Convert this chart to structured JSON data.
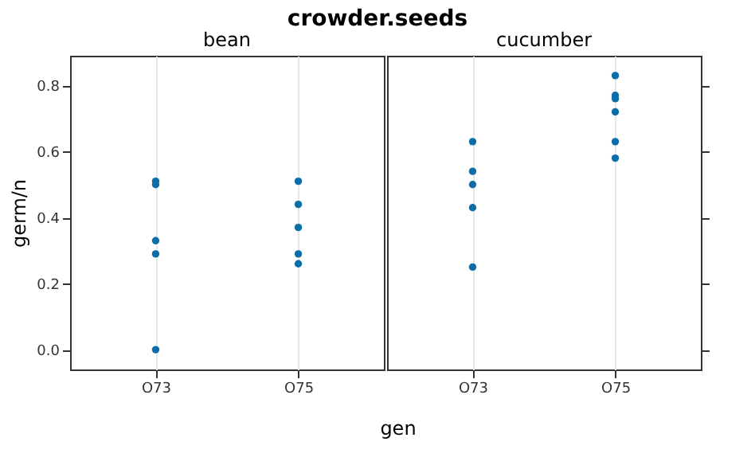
{
  "chart_data": [
    {
      "type": "scatter",
      "title": "crowder.seeds",
      "subtitle": "bean",
      "xlabel": "gen",
      "ylabel": "germ/n",
      "categories": [
        "O73",
        "O75"
      ],
      "series": [
        {
          "color": "#0b6ea8",
          "x": [
            "O73",
            "O73",
            "O73",
            "O73",
            "O73",
            "O75",
            "O75",
            "O75",
            "O75",
            "O75"
          ],
          "values": [
            0.51,
            0.5,
            0.33,
            0.29,
            0.0,
            0.51,
            0.44,
            0.37,
            0.29,
            0.26
          ]
        }
      ],
      "ylim": [
        -0.06,
        0.89
      ],
      "yticks": [
        {
          "value": 0,
          "label": "0.0"
        },
        0.2,
        0.4,
        0.6,
        0.8
      ],
      "grid": "x",
      "marker": "circle"
    },
    {
      "type": "scatter",
      "subtitle": "cucumber",
      "categories": [
        "O73",
        "O75"
      ],
      "series": [
        {
          "color": "#0b6ea8",
          "x": [
            "O73",
            "O73",
            "O73",
            "O73",
            "O73",
            "O75",
            "O75",
            "O75",
            "O75",
            "O75",
            "O75"
          ],
          "values": [
            0.63,
            0.54,
            0.5,
            0.43,
            0.25,
            0.83,
            0.77,
            0.76,
            0.72,
            0.63,
            0.58
          ]
        }
      ],
      "ylim": [
        -0.06,
        0.89
      ],
      "yticks": [
        0,
        0.2,
        0.4,
        0.6,
        0.8
      ],
      "grid": "x",
      "marker": "circle",
      "tick_labels": "x"
    }
  ]
}
